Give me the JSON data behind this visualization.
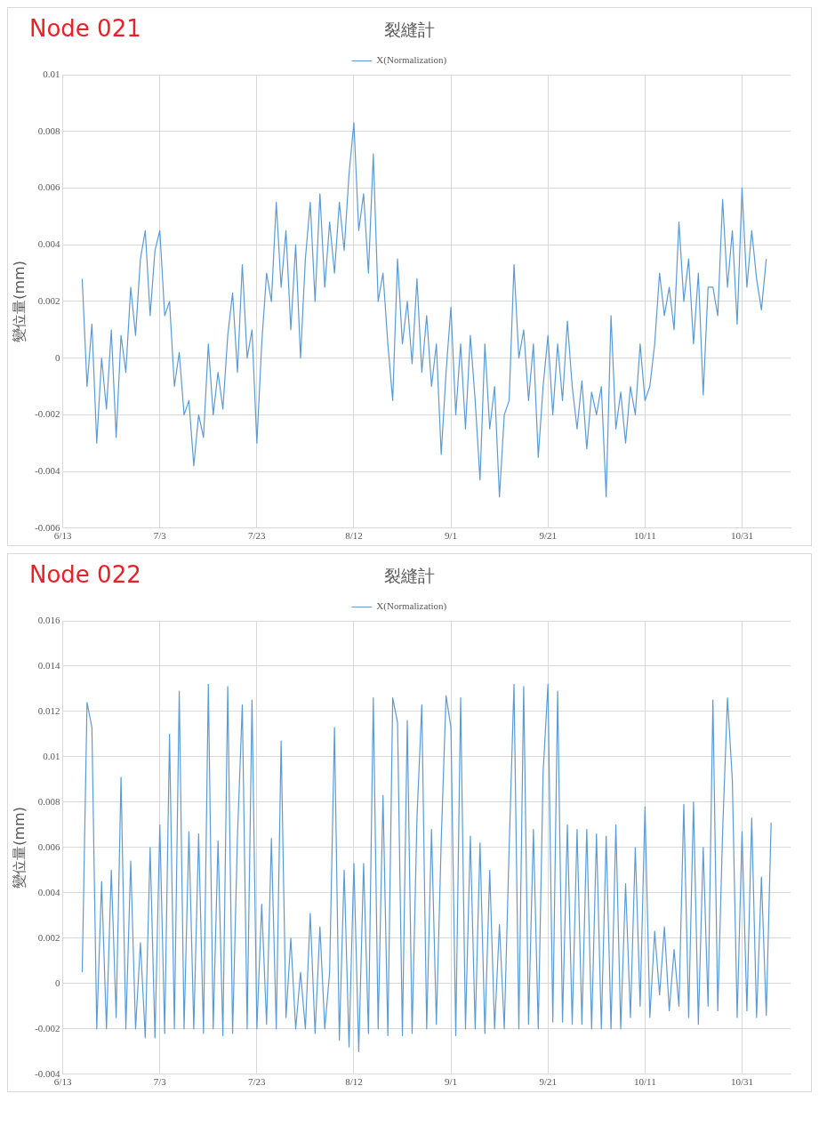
{
  "chart_data": [
    {
      "type": "line",
      "title": "裂縫計",
      "annotations": [
        "Node 021"
      ],
      "ylabel": "變位量(mm)",
      "legend": "top",
      "grid": true,
      "xlim": [
        "--06-13",
        "--11-10"
      ],
      "xticks": [
        {
          "value": "--06-13",
          "label": "6/13"
        },
        {
          "value": "--07-03",
          "label": "7/3"
        },
        {
          "value": "--07-23",
          "label": "7/23"
        },
        {
          "value": "--08-12",
          "label": "8/12"
        },
        {
          "value": "--09-01",
          "label": "9/1"
        },
        {
          "value": "--09-21",
          "label": "9/21"
        },
        {
          "value": "--10-11",
          "label": "10/11"
        },
        {
          "value": "--10-31",
          "label": "10/31"
        }
      ],
      "ylim": [
        -0.006,
        0.01
      ],
      "yticks": [
        -0.006,
        -0.004,
        -0.002,
        0,
        0.002,
        0.004,
        0.006,
        0.008,
        0.01
      ],
      "x": [
        "--06-17",
        "--06-18",
        "--06-19",
        "--06-20",
        "--06-21",
        "--06-22",
        "--06-23",
        "--06-24",
        "--06-25",
        "--06-26",
        "--06-27",
        "--06-28",
        "--06-29",
        "--06-30",
        "--07-01",
        "--07-02",
        "--07-03",
        "--07-04",
        "--07-05",
        "--07-06",
        "--07-07",
        "--07-08",
        "--07-09",
        "--07-10",
        "--07-11",
        "--07-12",
        "--07-13",
        "--07-14",
        "--07-15",
        "--07-16",
        "--07-17",
        "--07-18",
        "--07-19",
        "--07-20",
        "--07-21",
        "--07-22",
        "--07-23",
        "--07-24",
        "--07-25",
        "--07-26",
        "--07-27",
        "--07-28",
        "--07-29",
        "--07-30",
        "--07-31",
        "--08-01",
        "--08-02",
        "--08-03",
        "--08-04",
        "--08-05",
        "--08-06",
        "--08-07",
        "--08-08",
        "--08-09",
        "--08-10",
        "--08-11",
        "--08-12",
        "--08-13",
        "--08-14",
        "--08-15",
        "--08-16",
        "--08-17",
        "--08-18",
        "--08-19",
        "--08-20",
        "--08-21",
        "--08-22",
        "--08-23",
        "--08-24",
        "--08-25",
        "--08-26",
        "--08-27",
        "--08-28",
        "--08-29",
        "--08-30",
        "--08-31",
        "--09-01",
        "--09-02",
        "--09-03",
        "--09-04",
        "--09-05",
        "--09-06",
        "--09-07",
        "--09-08",
        "--09-09",
        "--09-10",
        "--09-11",
        "--09-12",
        "--09-13",
        "--09-14",
        "--09-15",
        "--09-16",
        "--09-17",
        "--09-18",
        "--09-19",
        "--09-20",
        "--09-21",
        "--09-22",
        "--09-23",
        "--09-24",
        "--09-25",
        "--09-26",
        "--09-27",
        "--09-28",
        "--09-29",
        "--09-30",
        "--10-01",
        "--10-02",
        "--10-03",
        "--10-04",
        "--10-05",
        "--10-06",
        "--10-07",
        "--10-08",
        "--10-09",
        "--10-10",
        "--10-11",
        "--10-12",
        "--10-13",
        "--10-14",
        "--10-15",
        "--10-16",
        "--10-17",
        "--10-18",
        "--10-19",
        "--10-20",
        "--10-21",
        "--10-22",
        "--10-23",
        "--10-24",
        "--10-25",
        "--10-26",
        "--10-27",
        "--10-28",
        "--10-29",
        "--10-30",
        "--10-31",
        "--11-01",
        "--11-02",
        "--11-03",
        "--11-04",
        "--11-05"
      ],
      "series": [
        {
          "name": "X(Normalization)",
          "color": "#5b9bd5",
          "values": [
            0.0028,
            -0.001,
            0.0012,
            -0.003,
            0,
            -0.0018,
            0.001,
            -0.0028,
            0.0008,
            -0.0005,
            0.0025,
            0.0008,
            0.0035,
            0.0045,
            0.0015,
            0.0038,
            0.0045,
            0.0015,
            0.002,
            -0.001,
            0.0002,
            -0.002,
            -0.0015,
            -0.0038,
            -0.002,
            -0.0028,
            0.0005,
            -0.002,
            -0.0005,
            -0.0018,
            0.0008,
            0.0023,
            -0.0005,
            0.0033,
            0,
            0.001,
            -0.003,
            0.0005,
            0.003,
            0.002,
            0.0055,
            0.0025,
            0.0045,
            0.001,
            0.004,
            0,
            0.0035,
            0.0055,
            0.002,
            0.0058,
            0.0025,
            0.0048,
            0.003,
            0.0055,
            0.0038,
            0.0065,
            0.0083,
            0.0045,
            0.0058,
            0.003,
            0.0072,
            0.002,
            0.003,
            0.0005,
            -0.0015,
            0.0035,
            0.0005,
            0.002,
            -0.0002,
            0.0028,
            -0.0005,
            0.0015,
            -0.001,
            0.0005,
            -0.0034,
            -0.0005,
            0.0018,
            -0.002,
            0.0005,
            -0.0025,
            0.0008,
            -0.0015,
            -0.0043,
            0.0005,
            -0.0025,
            -0.001,
            -0.0049,
            -0.002,
            -0.0015,
            0.0033,
            0,
            0.001,
            -0.0015,
            0.0005,
            -0.0035,
            -0.001,
            0.0008,
            -0.002,
            0.0005,
            -0.0015,
            0.0013,
            -0.001,
            -0.0025,
            -0.0008,
            -0.0032,
            -0.0012,
            -0.002,
            -0.001,
            -0.0049,
            0.0015,
            -0.0025,
            -0.0012,
            -0.003,
            -0.001,
            -0.002,
            0.0005,
            -0.0015,
            -0.001,
            0.0005,
            0.003,
            0.0015,
            0.0025,
            0.001,
            0.0048,
            0.002,
            0.0035,
            0.0005,
            0.003,
            -0.0013,
            0.0025,
            0.0025,
            0.0015,
            0.0056,
            0.0025,
            0.0045,
            0.0012,
            0.006,
            0.0025,
            0.0045,
            0.0028,
            0.0017,
            0.0035
          ]
        }
      ]
    },
    {
      "type": "line",
      "title": "裂縫計",
      "annotations": [
        "Node 022"
      ],
      "ylabel": "變位量(mm)",
      "legend": "top",
      "grid": true,
      "xlim": [
        "--06-13",
        "--11-10"
      ],
      "xticks": [
        {
          "value": "--06-13",
          "label": "6/13"
        },
        {
          "value": "--07-03",
          "label": "7/3"
        },
        {
          "value": "--07-23",
          "label": "7/23"
        },
        {
          "value": "--08-12",
          "label": "8/12"
        },
        {
          "value": "--09-01",
          "label": "9/1"
        },
        {
          "value": "--09-21",
          "label": "9/21"
        },
        {
          "value": "--10-11",
          "label": "10/11"
        },
        {
          "value": "--10-31",
          "label": "10/31"
        }
      ],
      "ylim": [
        -0.004,
        0.016
      ],
      "yticks": [
        -0.004,
        -0.002,
        0,
        0.002,
        0.004,
        0.006,
        0.008,
        0.01,
        0.012,
        0.014,
        0.016
      ],
      "x": [
        "--06-17",
        "--06-18",
        "--06-19",
        "--06-20",
        "--06-21",
        "--06-22",
        "--06-23",
        "--06-24",
        "--06-25",
        "--06-26",
        "--06-27",
        "--06-28",
        "--06-29",
        "--06-30",
        "--07-01",
        "--07-02",
        "--07-03",
        "--07-04",
        "--07-05",
        "--07-06",
        "--07-07",
        "--07-08",
        "--07-09",
        "--07-10",
        "--07-11",
        "--07-12",
        "--07-13",
        "--07-14",
        "--07-15",
        "--07-16",
        "--07-17",
        "--07-18",
        "--07-19",
        "--07-20",
        "--07-21",
        "--07-22",
        "--07-23",
        "--07-24",
        "--07-25",
        "--07-26",
        "--07-27",
        "--07-28",
        "--07-29",
        "--07-30",
        "--07-31",
        "--08-01",
        "--08-02",
        "--08-03",
        "--08-04",
        "--08-05",
        "--08-06",
        "--08-07",
        "--08-08",
        "--08-09",
        "--08-10",
        "--08-11",
        "--08-12",
        "--08-13",
        "--08-14",
        "--08-15",
        "--08-16",
        "--08-17",
        "--08-18",
        "--08-19",
        "--08-20",
        "--08-21",
        "--08-22",
        "--08-23",
        "--08-24",
        "--08-25",
        "--08-26",
        "--08-27",
        "--08-28",
        "--08-29",
        "--08-30",
        "--08-31",
        "--09-01",
        "--09-02",
        "--09-03",
        "--09-04",
        "--09-05",
        "--09-06",
        "--09-07",
        "--09-08",
        "--09-09",
        "--09-10",
        "--09-11",
        "--09-12",
        "--09-13",
        "--09-14",
        "--09-15",
        "--09-16",
        "--09-17",
        "--09-18",
        "--09-19",
        "--09-20",
        "--09-21",
        "--09-22",
        "--09-23",
        "--09-24",
        "--09-25",
        "--09-26",
        "--09-27",
        "--09-28",
        "--09-29",
        "--09-30",
        "--10-01",
        "--10-02",
        "--10-03",
        "--10-04",
        "--10-05",
        "--10-06",
        "--10-07",
        "--10-08",
        "--10-09",
        "--10-10",
        "--10-11",
        "--10-12",
        "--10-13",
        "--10-14",
        "--10-15",
        "--10-16",
        "--10-17",
        "--10-18",
        "--10-19",
        "--10-20",
        "--10-21",
        "--10-22",
        "--10-23",
        "--10-24",
        "--10-25",
        "--10-26",
        "--10-27",
        "--10-28",
        "--10-29",
        "--10-30",
        "--10-31",
        "--11-01",
        "--11-02",
        "--11-03",
        "--11-04",
        "--11-05",
        "--11-06"
      ],
      "series": [
        {
          "name": "X(Normalization)",
          "color": "#5b9bd5",
          "values": [
            0.0005,
            0.0124,
            0.0113,
            -0.002,
            0.0045,
            -0.002,
            0.005,
            -0.0015,
            0.0091,
            -0.002,
            0.0054,
            -0.002,
            0.0018,
            -0.0024,
            0.006,
            -0.0024,
            0.007,
            -0.0022,
            0.011,
            -0.002,
            0.0129,
            -0.002,
            0.0067,
            -0.002,
            0.0066,
            -0.0022,
            0.0132,
            -0.002,
            0.0063,
            -0.0023,
            0.0131,
            -0.0022,
            0.0065,
            0.0123,
            -0.002,
            0.0125,
            -0.002,
            0.0035,
            -0.0018,
            0.0064,
            -0.002,
            0.0107,
            -0.0015,
            0.002,
            -0.002,
            0.0005,
            -0.002,
            0.0031,
            -0.0022,
            0.0025,
            -0.002,
            0.0005,
            0.0113,
            -0.0025,
            0.005,
            -0.0028,
            0.0053,
            -0.003,
            0.0053,
            -0.0022,
            0.0126,
            -0.002,
            0.0083,
            -0.0023,
            0.0126,
            0.0115,
            -0.0023,
            0.0116,
            -0.0022,
            0.0073,
            0.0123,
            -0.002,
            0.0068,
            -0.0018,
            0.0063,
            0.0127,
            0.0113,
            -0.0023,
            0.0126,
            -0.002,
            0.0065,
            -0.002,
            0.0062,
            -0.0022,
            0.005,
            -0.002,
            0.0026,
            -0.002,
            0.006,
            0.0132,
            -0.002,
            0.0131,
            -0.0018,
            0.0068,
            -0.002,
            0.0093,
            0.0132,
            -0.0017,
            0.0129,
            -0.0017,
            0.007,
            -0.0018,
            0.0068,
            -0.0018,
            0.0068,
            -0.002,
            0.0066,
            -0.002,
            0.0065,
            -0.002,
            0.007,
            -0.002,
            0.0044,
            -0.0015,
            0.006,
            -0.001,
            0.0078,
            -0.0015,
            0.0023,
            -0.0005,
            0.0025,
            -0.0012,
            0.0015,
            -0.001,
            0.0079,
            -0.0015,
            0.008,
            -0.0018,
            0.006,
            -0.001,
            0.0125,
            -0.0012,
            0.0067,
            0.0126,
            0.009,
            -0.0015,
            0.0067,
            -0.0012,
            0.0073,
            -0.0015,
            0.0047,
            -0.0014,
            0.0071
          ]
        }
      ]
    }
  ]
}
